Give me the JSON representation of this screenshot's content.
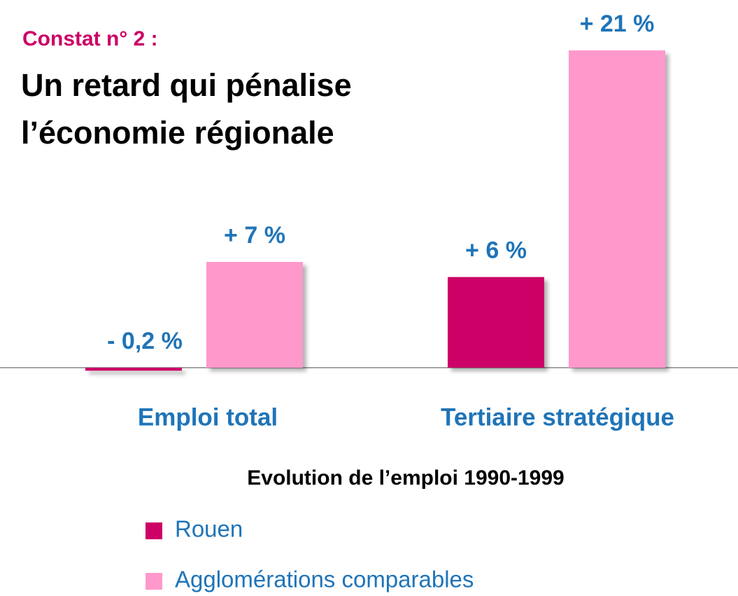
{
  "chart_data": {
    "type": "bar",
    "kicker": "Constat n° 2 :",
    "title_lines": [
      "Un retard qui pénalise",
      "l’économie régionale"
    ],
    "xlabel": "Evolution de l’emploi 1990-1999",
    "categories": [
      "Emploi total",
      "Tertiaire stratégique"
    ],
    "series": [
      {
        "name": "Rouen",
        "color": "#cc0066",
        "values": [
          -0.2,
          6
        ],
        "value_labels": [
          "- 0,2 %",
          "+ 6 %"
        ]
      },
      {
        "name": "Agglomérations comparables",
        "color": "#ff99cc",
        "values": [
          7,
          21
        ],
        "value_labels": [
          "+ 7 %",
          "+ 21 %"
        ]
      }
    ]
  }
}
